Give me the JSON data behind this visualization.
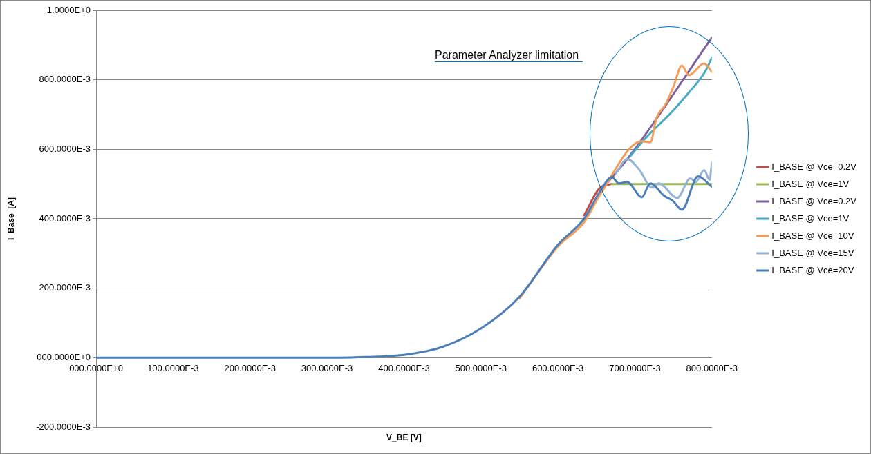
{
  "chart_data": {
    "type": "line",
    "xlabel": "V_BE [V]",
    "ylabel": "I_Base  [A]",
    "xlim": [
      0,
      0.8
    ],
    "ylim": [
      -0.2,
      1.0
    ],
    "xticks": [
      {
        "value": 0,
        "label": "000.0000E+0"
      },
      {
        "value": 0.1,
        "label": "100.0000E-3"
      },
      {
        "value": 0.2,
        "label": "200.0000E-3"
      },
      {
        "value": 0.3,
        "label": "300.0000E-3"
      },
      {
        "value": 0.4,
        "label": "400.0000E-3"
      },
      {
        "value": 0.5,
        "label": "500.0000E-3"
      },
      {
        "value": 0.6,
        "label": "600.0000E-3"
      },
      {
        "value": 0.7,
        "label": "700.0000E-3"
      },
      {
        "value": 0.8,
        "label": "800.0000E-3"
      }
    ],
    "yticks": [
      {
        "value": -0.2,
        "label": "-200.0000E-3"
      },
      {
        "value": 0,
        "label": "000.0000E+0"
      },
      {
        "value": 0.2,
        "label": "200.0000E-3"
      },
      {
        "value": 0.4,
        "label": "400.0000E-3"
      },
      {
        "value": 0.6,
        "label": "600.0000E-3"
      },
      {
        "value": 0.8,
        "label": "800.0000E-3"
      },
      {
        "value": 1.0,
        "label": "1.0000E+0"
      }
    ],
    "grid": "y",
    "legend": "right",
    "marker": "none",
    "line_style": "solid",
    "annotations": [
      "Parameter Analyzer limitation"
    ],
    "series": [
      {
        "name": "I_BASE @ Vce=0.2V",
        "color": "#be4b48",
        "x": [
          0.634,
          0.655,
          0.67
        ],
        "values": [
          0.41,
          0.49,
          0.5
        ]
      },
      {
        "name": "I_BASE @ Vce=1V",
        "color": "#98b954",
        "x": [
          0.67,
          0.8
        ],
        "values": [
          0.5,
          0.5
        ]
      },
      {
        "name": "I_BASE @ Vce=0.2V",
        "color": "#7d60a0",
        "x": [
          0.655,
          0.694,
          0.8
        ],
        "values": [
          0.48,
          0.583,
          0.922
        ]
      },
      {
        "name": "I_BASE @ Vce=1V",
        "color": "#46aac5",
        "x": [
          0.694,
          0.713,
          0.749,
          0.77,
          0.791,
          0.8
        ],
        "values": [
          0.58,
          0.63,
          0.71,
          0.763,
          0.823,
          0.864
        ]
      },
      {
        "name": "I_BASE @ Vce=10V",
        "color": "#f59d56",
        "x": [
          0.55,
          0.6,
          0.634,
          0.655,
          0.709,
          0.72,
          0.728,
          0.74,
          0.75,
          0.761,
          0.77,
          0.79,
          0.8
        ],
        "values": [
          0.17,
          0.32,
          0.39,
          0.47,
          0.623,
          0.62,
          0.69,
          0.73,
          0.78,
          0.841,
          0.813,
          0.847,
          0.823
        ]
      },
      {
        "name": "I_BASE @ Vce=15V",
        "color": "#95b3d7",
        "x": [
          0.675,
          0.69,
          0.706,
          0.722,
          0.731,
          0.755,
          0.772,
          0.779,
          0.79,
          0.797,
          0.8
        ],
        "values": [
          0.53,
          0.572,
          0.54,
          0.49,
          0.502,
          0.46,
          0.516,
          0.506,
          0.54,
          0.512,
          0.562
        ]
      },
      {
        "name": "I_BASE @ Vce=20V",
        "color": "#4a7ebb",
        "x": [
          0,
          0.1,
          0.2,
          0.3,
          0.35,
          0.4,
          0.45,
          0.5,
          0.55,
          0.6,
          0.634,
          0.655,
          0.67,
          0.679,
          0.69,
          0.709,
          0.72,
          0.738,
          0.749,
          0.761,
          0.782,
          0.8
        ],
        "values": [
          0,
          0,
          0,
          0,
          0.002,
          0.008,
          0.031,
          0.084,
          0.175,
          0.325,
          0.4,
          0.48,
          0.52,
          0.502,
          0.506,
          0.462,
          0.502,
          0.466,
          0.452,
          0.426,
          0.522,
          0.492
        ]
      }
    ]
  }
}
